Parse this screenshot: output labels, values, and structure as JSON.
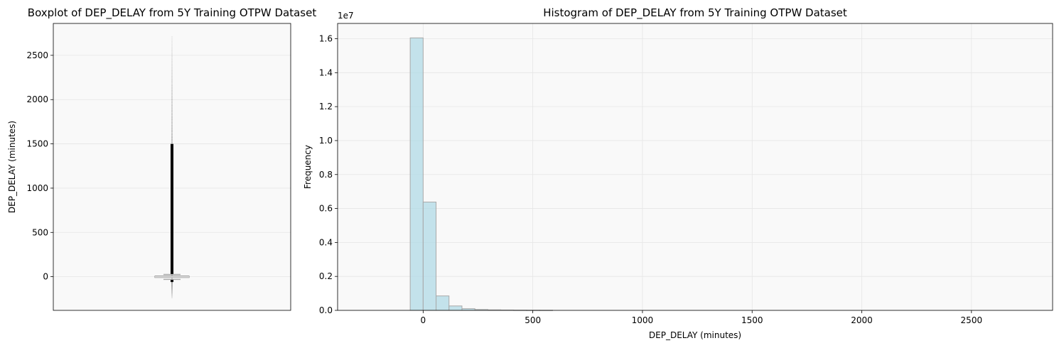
{
  "chart_data": [
    {
      "type": "box",
      "title": "Boxplot of DEP_DELAY from 5Y Training OTPW Dataset",
      "xlabel": "",
      "ylabel": "DEP_DELAY (minutes)",
      "ylim": [
        -380,
        2860
      ],
      "yticks": [
        0,
        500,
        1000,
        1500,
        2000,
        2500
      ],
      "grid": true,
      "box": {
        "q1": -5,
        "median": -2,
        "q3": 7,
        "whisker_low": -31,
        "whisker_high": 25,
        "outliers_dense_low": [
          -60,
          -32
        ],
        "outliers_dense_high": [
          26,
          1500
        ],
        "outliers_sparse_low": [
          -240,
          -60
        ],
        "outliers_sparse_high": [
          1500,
          2710
        ]
      },
      "colors": {
        "box": "#a9a9a9",
        "background": "#f9f9f9",
        "outlier": "#000000"
      }
    },
    {
      "type": "bar",
      "title": "Histogram of DEP_DELAY from 5Y Training OTPW Dataset",
      "xlabel": "DEP_DELAY (minutes)",
      "ylabel": "Frequency",
      "y_offset_text": "1e7",
      "xlim": [
        -390,
        2870
      ],
      "ylim": [
        0,
        1.69
      ],
      "xticks": [
        0,
        500,
        1000,
        1500,
        2000,
        2500
      ],
      "yticks": [
        "0.0",
        "0.2",
        "0.4",
        "0.6",
        "0.8",
        "1.0",
        "1.2",
        "1.4",
        "1.6"
      ],
      "grid": true,
      "bin_width": 59,
      "bins_start": -59,
      "values": [
        1.605,
        0.638,
        0.085,
        0.026,
        0.01,
        0.005,
        0.003,
        0.002,
        0.0012,
        0.0008,
        0.0006
      ],
      "colors": {
        "bar": "#add8e6",
        "bar_edge": "#a9a9a9",
        "background": "#f9f9f9"
      }
    }
  ]
}
